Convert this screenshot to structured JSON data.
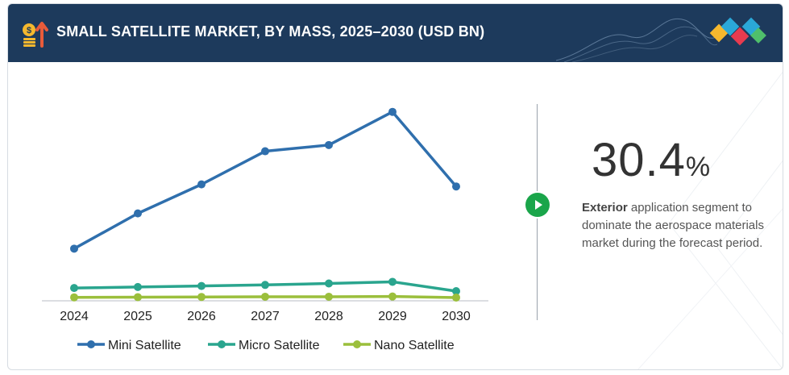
{
  "header": {
    "title": "SMALL SATELLITE MARKET, BY MASS, 2025–2030 (USD BN)"
  },
  "highlight": {
    "value": "30.4",
    "unit": "%",
    "description_bold": "Exterior",
    "description_rest": " application segment to dominate the aerospace materials market during the forecast period."
  },
  "colors": {
    "header_bg": "#1d3a5c",
    "mini": "#2f6fad",
    "micro": "#2aa58e",
    "nano": "#9bbf3c",
    "play": "#1aa54a"
  },
  "chart_data": {
    "type": "line",
    "title": "SMALL SATELLITE MARKET, BY MASS, 2025–2030 (USD BN)",
    "xlabel": "",
    "ylabel": "",
    "categories": [
      "2024",
      "2025",
      "2026",
      "2027",
      "2028",
      "2029",
      "2030"
    ],
    "ylim": [
      0,
      10
    ],
    "grid": false,
    "legend": "bottom",
    "series": [
      {
        "name": "Mini Satellite",
        "color": "#2f6fad",
        "values": [
          2.4,
          4.1,
          5.5,
          7.1,
          7.4,
          9.0,
          5.4
        ]
      },
      {
        "name": "Micro Satellite",
        "color": "#2aa58e",
        "values": [
          0.5,
          0.55,
          0.6,
          0.65,
          0.72,
          0.8,
          0.35
        ]
      },
      {
        "name": "Nano Satellite",
        "color": "#9bbf3c",
        "values": [
          0.05,
          0.06,
          0.07,
          0.08,
          0.08,
          0.09,
          0.04
        ]
      }
    ]
  }
}
